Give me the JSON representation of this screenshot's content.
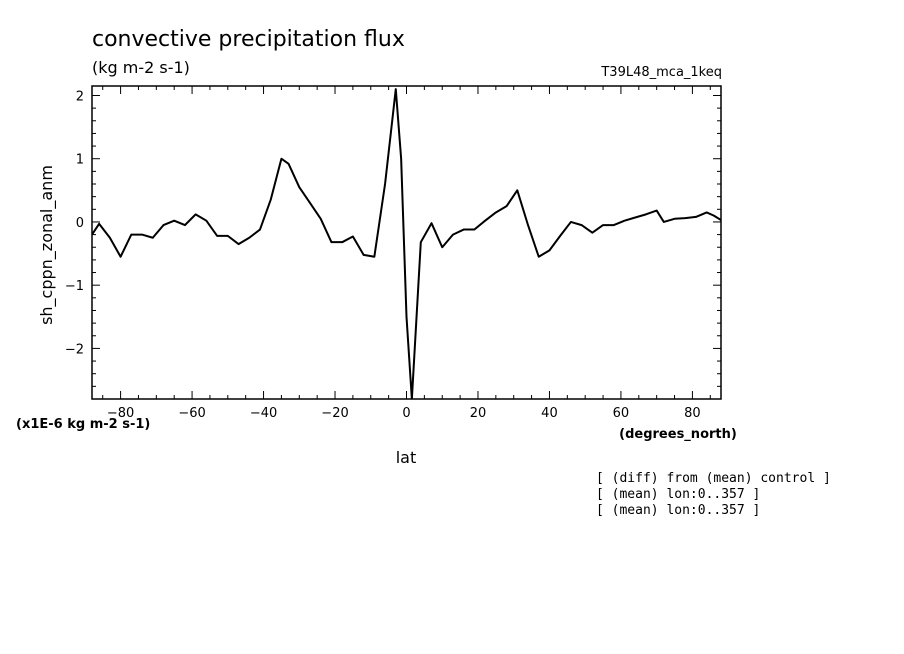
{
  "title": "convective precipitation flux",
  "units": "(kg m-2 s-1)",
  "run_id": "T39L48_mca_1keq",
  "ylabel": "sh_cppn_zonal_anm",
  "xlabel": "lat",
  "x_units": "(degrees_north)",
  "scale_note": "(x1E-6 kg m-2 s-1)",
  "notes": [
    "[ (diff) from (mean) control ]",
    "[ (mean) lon:0..357 ]",
    "[ (mean) lon:0..357 ]"
  ],
  "chart_data": {
    "type": "line",
    "title": "convective precipitation flux",
    "xlabel": "lat",
    "ylabel": "sh_cppn_zonal_anm",
    "xlim": [
      -88,
      88
    ],
    "ylim": [
      -2.8,
      2.15
    ],
    "xticks": [
      -80,
      -60,
      -40,
      -20,
      0,
      20,
      40,
      60,
      80
    ],
    "yticks": [
      2,
      1,
      0,
      -1,
      -2
    ],
    "grid": false,
    "series": [
      {
        "x": [
          -88,
          -86,
          -83,
          -80,
          -77,
          -74,
          -71,
          -68,
          -65,
          -62,
          -59,
          -56,
          -53,
          -50,
          -47,
          -44,
          -41,
          -38,
          -35,
          -33,
          -30,
          -27,
          -24,
          -21,
          -18,
          -15,
          -12,
          -9,
          -6,
          -3,
          -1.5,
          0,
          1.5,
          4,
          7,
          10,
          13,
          16,
          19,
          22,
          25,
          28,
          31,
          34,
          37,
          40,
          43,
          46,
          49,
          52,
          55,
          58,
          61,
          64,
          67,
          70,
          72,
          75,
          78,
          81,
          84,
          86,
          88
        ],
        "y": [
          -0.2,
          -0.03,
          -0.25,
          -0.55,
          -0.2,
          -0.2,
          -0.25,
          -0.05,
          0.02,
          -0.05,
          0.12,
          0.02,
          -0.22,
          -0.22,
          -0.35,
          -0.25,
          -0.12,
          0.35,
          1.0,
          0.92,
          0.55,
          0.3,
          0.05,
          -0.32,
          -0.32,
          -0.23,
          -0.52,
          -0.55,
          0.6,
          2.1,
          1.0,
          -1.5,
          -2.8,
          -0.32,
          -0.02,
          -0.4,
          -0.2,
          -0.12,
          -0.12,
          0.02,
          0.15,
          0.25,
          0.5,
          -0.05,
          -0.55,
          -0.45,
          -0.22,
          0.0,
          -0.05,
          -0.17,
          -0.05,
          -0.05,
          0.02,
          0.07,
          0.12,
          0.18,
          0.0,
          0.05,
          0.06,
          0.08,
          0.15,
          0.1,
          0.03
        ]
      }
    ]
  }
}
